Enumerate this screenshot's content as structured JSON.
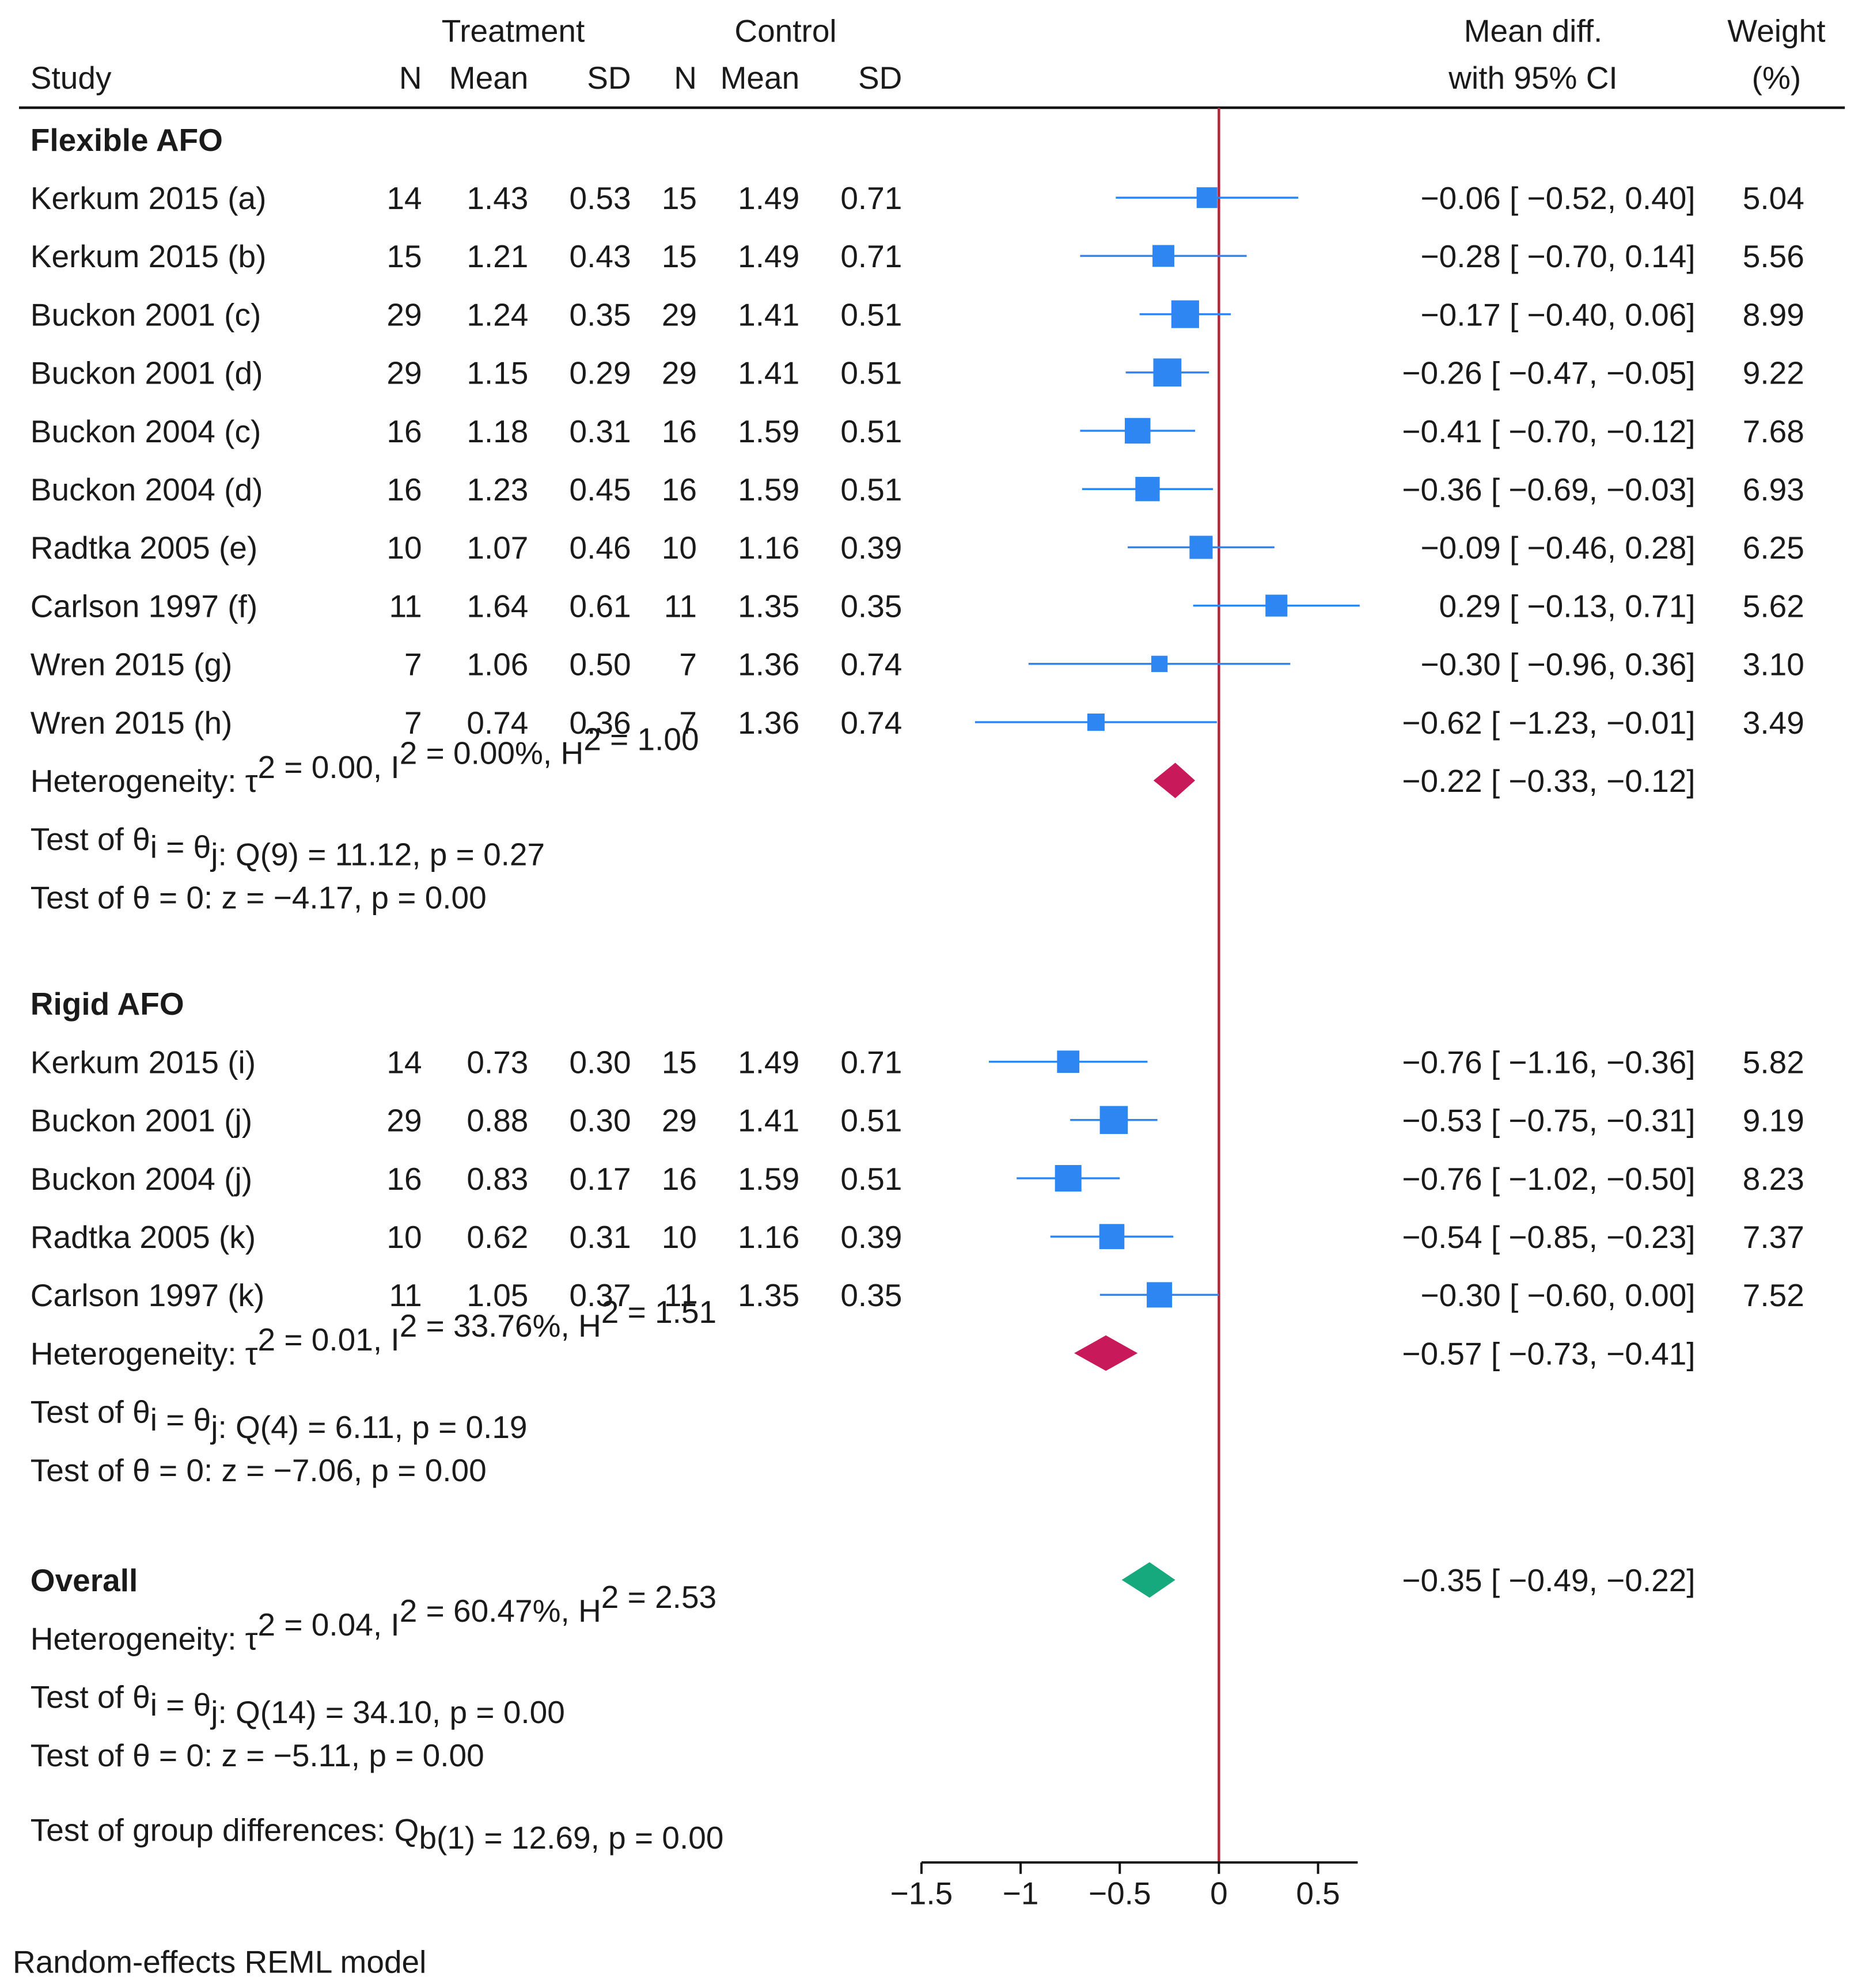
{
  "chart_data": {
    "type": "forest",
    "header": {
      "treatment": "Treatment",
      "control": "Control",
      "study": "Study",
      "n": "N",
      "mean": "Mean",
      "sd": "SD",
      "effect_line1": "Mean diff.",
      "effect_line2": "with 95% CI",
      "weight_line1": "Weight",
      "weight_line2": "(%)"
    },
    "xaxis": {
      "min": -1.5,
      "max": 0.7,
      "ticks": [
        -1.5,
        -1,
        -0.5,
        0,
        0.5
      ],
      "tick_labels": [
        "−1.5",
        "−1",
        "−0.5",
        "0",
        "0.5"
      ],
      "null_line": 0
    },
    "colors": {
      "study_marker": "#2e86f2",
      "study_line": "#2e86f2",
      "flexible_diamond": "#c8195a",
      "rigid_diamond": "#c8195a",
      "overall_diamond": "#17a97e",
      "null_line": "#b3243b",
      "rule": "#111111"
    },
    "groups": [
      {
        "name": "Flexible AFO",
        "studies": [
          {
            "label": "Kerkum 2015 (a)",
            "t_n": "14",
            "t_mean": "1.43",
            "t_sd": "0.53",
            "c_n": "15",
            "c_mean": "1.49",
            "c_sd": "0.71",
            "md": -0.06,
            "lo": -0.52,
            "hi": 0.4,
            "weight": 5.04,
            "ci_text": "−0.06 [ −0.52,   0.40]",
            "weight_text": "5.04"
          },
          {
            "label": "Kerkum 2015 (b)",
            "t_n": "15",
            "t_mean": "1.21",
            "t_sd": "0.43",
            "c_n": "15",
            "c_mean": "1.49",
            "c_sd": "0.71",
            "md": -0.28,
            "lo": -0.7,
            "hi": 0.14,
            "weight": 5.56,
            "ci_text": "−0.28 [ −0.70,   0.14]",
            "weight_text": "5.56"
          },
          {
            "label": "Buckon 2001 (c)",
            "t_n": "29",
            "t_mean": "1.24",
            "t_sd": "0.35",
            "c_n": "29",
            "c_mean": "1.41",
            "c_sd": "0.51",
            "md": -0.17,
            "lo": -0.4,
            "hi": 0.06,
            "weight": 8.99,
            "ci_text": "−0.17 [ −0.40,   0.06]",
            "weight_text": "8.99"
          },
          {
            "label": "Buckon 2001 (d)",
            "t_n": "29",
            "t_mean": "1.15",
            "t_sd": "0.29",
            "c_n": "29",
            "c_mean": "1.41",
            "c_sd": "0.51",
            "md": -0.26,
            "lo": -0.47,
            "hi": -0.05,
            "weight": 9.22,
            "ci_text": "−0.26 [ −0.47, −0.05]",
            "weight_text": "9.22"
          },
          {
            "label": "Buckon 2004 (c)",
            "t_n": "16",
            "t_mean": "1.18",
            "t_sd": "0.31",
            "c_n": "16",
            "c_mean": "1.59",
            "c_sd": "0.51",
            "md": -0.41,
            "lo": -0.7,
            "hi": -0.12,
            "weight": 7.68,
            "ci_text": "−0.41 [ −0.70, −0.12]",
            "weight_text": "7.68"
          },
          {
            "label": "Buckon 2004 (d)",
            "t_n": "16",
            "t_mean": "1.23",
            "t_sd": "0.45",
            "c_n": "16",
            "c_mean": "1.59",
            "c_sd": "0.51",
            "md": -0.36,
            "lo": -0.69,
            "hi": -0.03,
            "weight": 6.93,
            "ci_text": "−0.36 [ −0.69, −0.03]",
            "weight_text": "6.93"
          },
          {
            "label": "Radtka 2005 (e)",
            "t_n": "10",
            "t_mean": "1.07",
            "t_sd": "0.46",
            "c_n": "10",
            "c_mean": "1.16",
            "c_sd": "0.39",
            "md": -0.09,
            "lo": -0.46,
            "hi": 0.28,
            "weight": 6.25,
            "ci_text": "−0.09 [ −0.46,   0.28]",
            "weight_text": "6.25"
          },
          {
            "label": "Carlson 1997 (f)",
            "t_n": "11",
            "t_mean": "1.64",
            "t_sd": "0.61",
            "c_n": "11",
            "c_mean": "1.35",
            "c_sd": "0.35",
            "md": 0.29,
            "lo": -0.13,
            "hi": 0.71,
            "weight": 5.62,
            "ci_text": "0.29 [ −0.13,   0.71]",
            "weight_text": "5.62"
          },
          {
            "label": "Wren 2015 (g)",
            "t_n": "7",
            "t_mean": "1.06",
            "t_sd": "0.50",
            "c_n": "7",
            "c_mean": "1.36",
            "c_sd": "0.74",
            "md": -0.3,
            "lo": -0.96,
            "hi": 0.36,
            "weight": 3.1,
            "ci_text": "−0.30 [ −0.96,   0.36]",
            "weight_text": "3.10"
          },
          {
            "label": "Wren 2015 (h)",
            "t_n": "7",
            "t_mean": "0.74",
            "t_sd": "0.36",
            "c_n": "7",
            "c_mean": "1.36",
            "c_sd": "0.74",
            "md": -0.62,
            "lo": -1.23,
            "hi": -0.01,
            "weight": 3.49,
            "ci_text": "−0.62 [ −1.23, −0.01]",
            "weight_text": "3.49"
          }
        ],
        "summary": {
          "md": -0.22,
          "lo": -0.33,
          "hi": -0.12,
          "ci_text": "−0.22 [ −0.33, −0.12]"
        },
        "heterogeneity": {
          "tau2": "0.00",
          "i2": "0.00%",
          "h2": "1.00"
        },
        "q_test": {
          "df": "9",
          "q": "11.12",
          "p": "0.27"
        },
        "z_test": {
          "z": "−4.17",
          "p": "0.00"
        }
      },
      {
        "name": "Rigid AFO",
        "studies": [
          {
            "label": "Kerkum 2015 (i)",
            "t_n": "14",
            "t_mean": "0.73",
            "t_sd": "0.30",
            "c_n": "15",
            "c_mean": "1.49",
            "c_sd": "0.71",
            "md": -0.76,
            "lo": -1.16,
            "hi": -0.36,
            "weight": 5.82,
            "ci_text": "−0.76 [ −1.16, −0.36]",
            "weight_text": "5.82"
          },
          {
            "label": "Buckon 2001 (j)",
            "t_n": "29",
            "t_mean": "0.88",
            "t_sd": "0.30",
            "c_n": "29",
            "c_mean": "1.41",
            "c_sd": "0.51",
            "md": -0.53,
            "lo": -0.75,
            "hi": -0.31,
            "weight": 9.19,
            "ci_text": "−0.53 [ −0.75, −0.31]",
            "weight_text": "9.19"
          },
          {
            "label": "Buckon 2004 (j)",
            "t_n": "16",
            "t_mean": "0.83",
            "t_sd": "0.17",
            "c_n": "16",
            "c_mean": "1.59",
            "c_sd": "0.51",
            "md": -0.76,
            "lo": -1.02,
            "hi": -0.5,
            "weight": 8.23,
            "ci_text": "−0.76 [ −1.02, −0.50]",
            "weight_text": "8.23"
          },
          {
            "label": "Radtka 2005 (k)",
            "t_n": "10",
            "t_mean": "0.62",
            "t_sd": "0.31",
            "c_n": "10",
            "c_mean": "1.16",
            "c_sd": "0.39",
            "md": -0.54,
            "lo": -0.85,
            "hi": -0.23,
            "weight": 7.37,
            "ci_text": "−0.54 [ −0.85, −0.23]",
            "weight_text": "7.37"
          },
          {
            "label": "Carlson 1997 (k)",
            "t_n": "11",
            "t_mean": "1.05",
            "t_sd": "0.37",
            "c_n": "11",
            "c_mean": "1.35",
            "c_sd": "0.35",
            "md": -0.3,
            "lo": -0.6,
            "hi": 0.0,
            "weight": 7.52,
            "ci_text": "−0.30 [ −0.60,   0.00]",
            "weight_text": "7.52"
          }
        ],
        "summary": {
          "md": -0.57,
          "lo": -0.73,
          "hi": -0.41,
          "ci_text": "−0.57 [ −0.73, −0.41]"
        },
        "heterogeneity": {
          "tau2": "0.01",
          "i2": "33.76%",
          "h2": "1.51"
        },
        "q_test": {
          "df": "4",
          "q": "6.11",
          "p": "0.19"
        },
        "z_test": {
          "z": "−7.06",
          "p": "0.00"
        }
      }
    ],
    "overall": {
      "label": "Overall",
      "summary": {
        "md": -0.35,
        "lo": -0.49,
        "hi": -0.22,
        "ci_text": "−0.35 [ −0.49, −0.22]"
      },
      "heterogeneity": {
        "tau2": "0.04",
        "i2": "60.47%",
        "h2": "2.53"
      },
      "q_test": {
        "df": "14",
        "q": "34.10",
        "p": "0.00"
      },
      "z_test": {
        "z": "−5.11",
        "p": "0.00"
      }
    },
    "group_difference": {
      "df": "1",
      "q": "12.69",
      "p": "0.00"
    },
    "labels": {
      "heterogeneity": "Heterogeneity: τ",
      "q_test_prefix": "Test of θ",
      "z_test_prefix": "Test of θ = 0: z = ",
      "group_diff_prefix": "Test of group differences: Q",
      "group_diff_subscript": "b",
      "model_note": "Random-effects REML model"
    }
  }
}
